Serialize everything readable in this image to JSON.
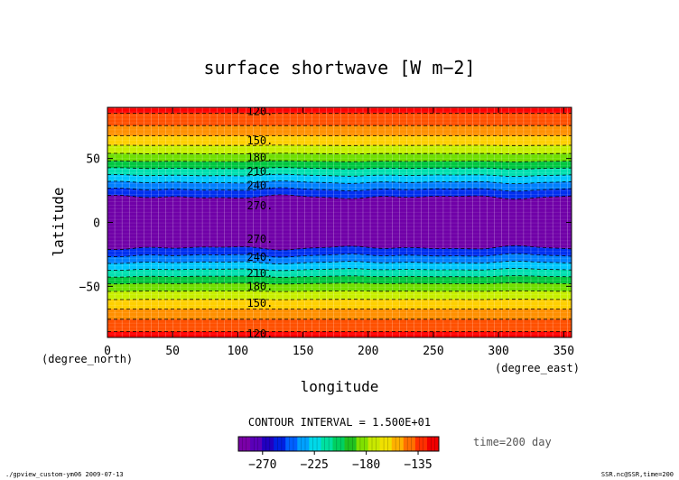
{
  "chart_data": {
    "type": "heatmap",
    "title": "surface shortwave [W m−2]",
    "xlabel": "longitude",
    "ylabel": "latitude",
    "x_units": "(degree_east)",
    "y_units": "(degree_north)",
    "xlim": [
      0,
      356
    ],
    "ylim": [
      -90,
      90
    ],
    "x_ticks": [
      "0",
      "50",
      "100",
      "150",
      "200",
      "250",
      "300",
      "350"
    ],
    "y_ticks": [
      "50",
      "0",
      "−50"
    ],
    "x_tick_values": [
      0,
      50,
      100,
      150,
      200,
      250,
      300,
      350
    ],
    "y_tick_values": [
      50,
      0,
      -50
    ],
    "contour_interval_text": "CONTOUR INTERVAL = 1.500E+01",
    "time_text": "time=200 day",
    "contour_levels": [
      120,
      135,
      150,
      165,
      180,
      195,
      210,
      225,
      240,
      255,
      270
    ],
    "contour_labels": [
      {
        "text": "120.",
        "lat": 87
      },
      {
        "text": "150.",
        "lat": 64
      },
      {
        "text": "180.",
        "lat": 51
      },
      {
        "text": "210.",
        "lat": 40
      },
      {
        "text": "240.",
        "lat": 29
      },
      {
        "text": "270.",
        "lat": 13
      },
      {
        "text": "270.",
        "lat": -13
      },
      {
        "text": "240.",
        "lat": -27
      },
      {
        "text": "210.",
        "lat": -40
      },
      {
        "text": "180.",
        "lat": -50
      },
      {
        "text": "150.",
        "lat": -63
      },
      {
        "text": "120.",
        "lat": -87
      }
    ],
    "profile_lat": [
      90,
      80,
      72,
      64,
      57,
      51,
      45,
      40,
      34,
      29,
      23,
      18,
      12,
      0,
      -12,
      -18,
      -23,
      -29,
      -34,
      -40,
      -45,
      -51,
      -57,
      -64,
      -72,
      -80,
      -90
    ],
    "profile_value": [
      114,
      127,
      142,
      157,
      172,
      187,
      202,
      217,
      232,
      247,
      262,
      275,
      285,
      292,
      285,
      275,
      262,
      247,
      232,
      217,
      202,
      187,
      172,
      157,
      142,
      127,
      114
    ],
    "wave_amplitude": 15,
    "colorbar": {
      "colors": [
        "#7a00a8",
        "#5a00b8",
        "#2000c0",
        "#0020e0",
        "#0060ff",
        "#00a0ff",
        "#00d8e8",
        "#00e0a0",
        "#00d060",
        "#20c020",
        "#80e000",
        "#c8e800",
        "#f0e000",
        "#ffb000",
        "#ff7000",
        "#ff3000",
        "#f00000"
      ],
      "tick_labels": [
        "−270",
        "−225",
        "−180",
        "−135"
      ],
      "tick_values": [
        -270,
        -225,
        -180,
        -135
      ]
    },
    "grid": true
  },
  "footer": {
    "left": "./gpview_custom-ym06  2009-07-13",
    "right": "SSR.nc@SSR,time=200"
  }
}
